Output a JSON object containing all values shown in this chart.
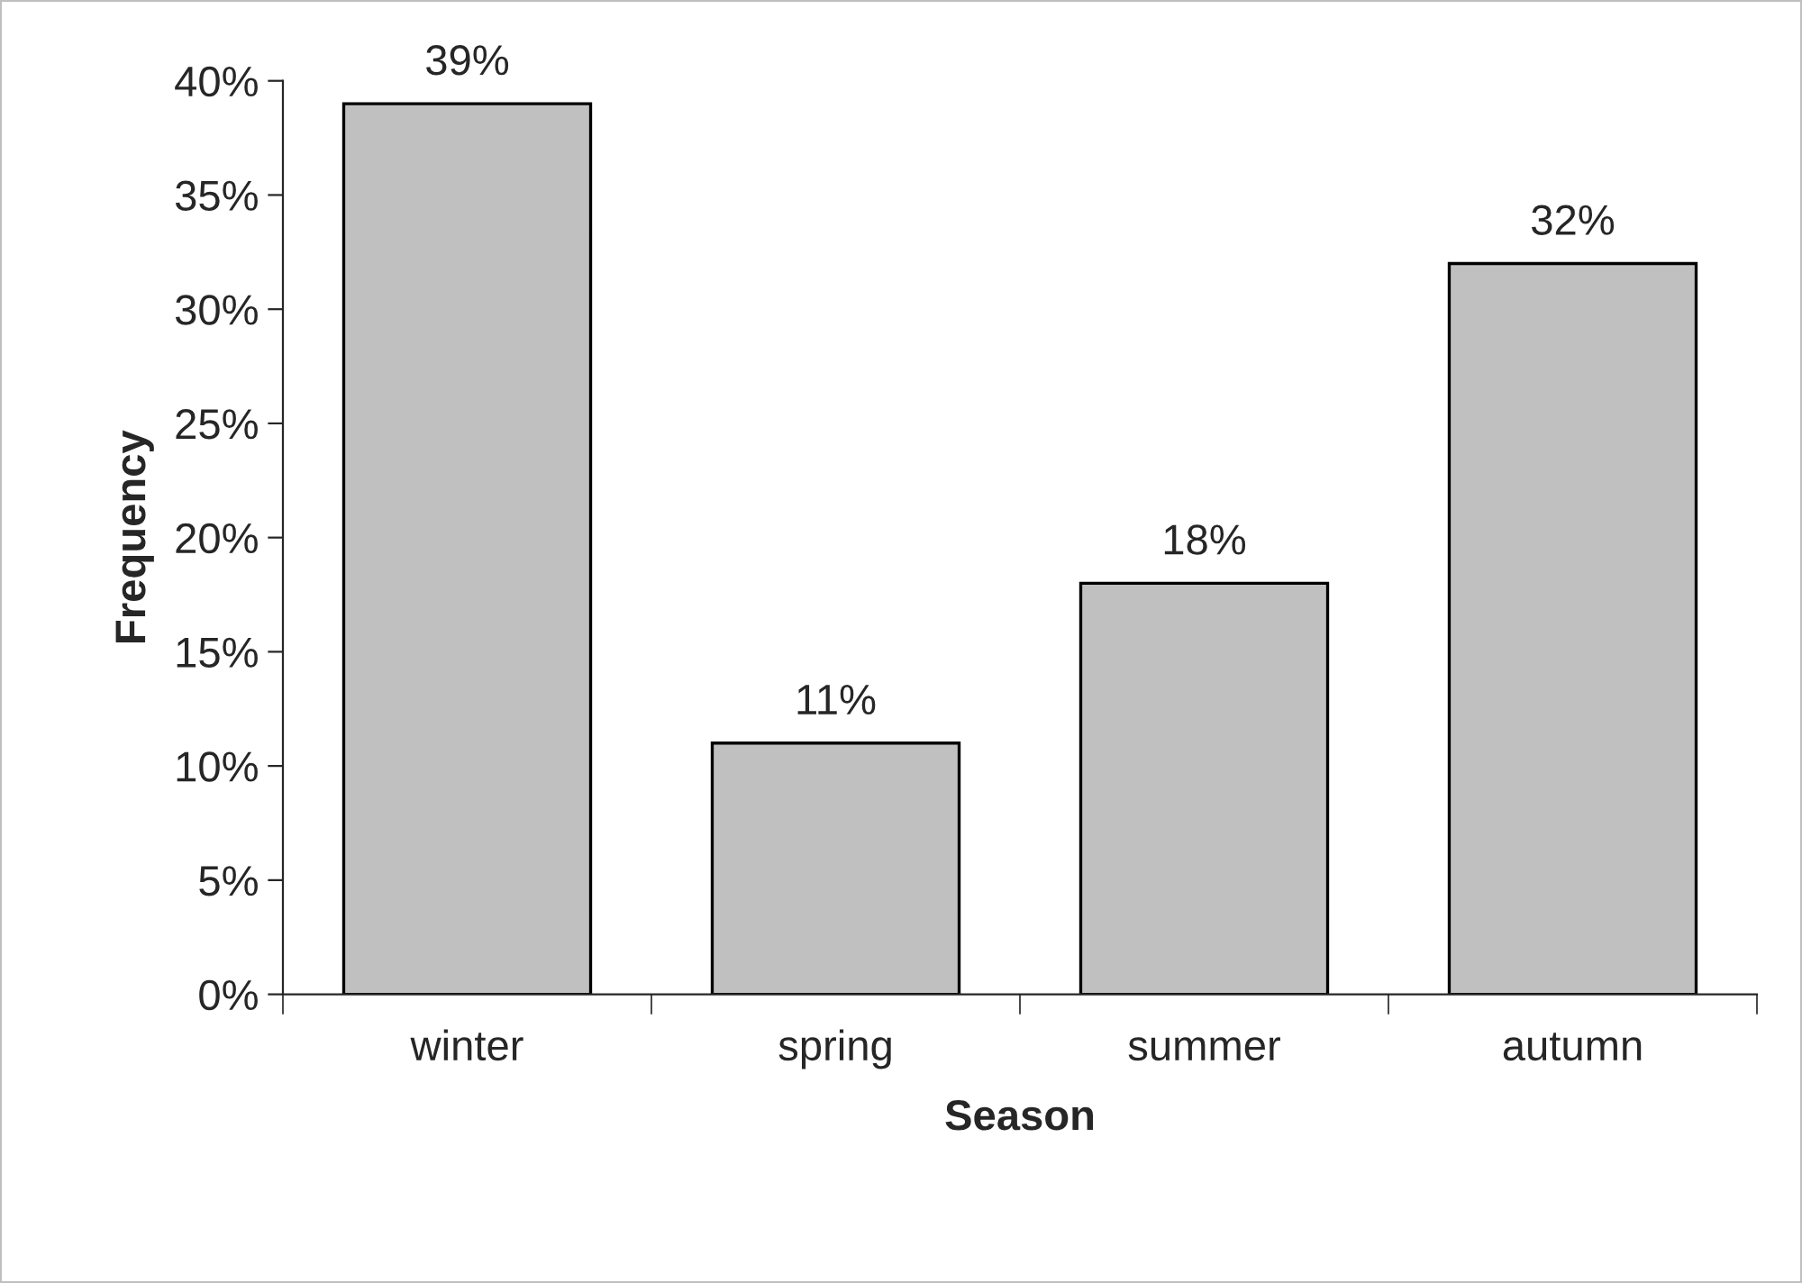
{
  "chart_data": {
    "type": "bar",
    "xlabel": "Season",
    "ylabel": "Frequency",
    "categories": [
      "winter",
      "spring",
      "summer",
      "autumn"
    ],
    "values": [
      39,
      11,
      18,
      32
    ],
    "color": "#c0c0c0",
    "value_labels": [
      "39%",
      "11%",
      "18%",
      "32%"
    ],
    "ylim": [
      0,
      40
    ],
    "yticks": [
      {
        "value": 0,
        "label": "0%"
      },
      {
        "value": 5,
        "label": "5%"
      },
      {
        "value": 10,
        "label": "10%"
      },
      {
        "value": 15,
        "label": "15%"
      },
      {
        "value": 20,
        "label": "20%"
      },
      {
        "value": 25,
        "label": "25%"
      },
      {
        "value": 30,
        "label": "30%"
      },
      {
        "value": 35,
        "label": "35%"
      },
      {
        "value": 40,
        "label": "40%"
      }
    ],
    "grid": false,
    "legend": false
  }
}
